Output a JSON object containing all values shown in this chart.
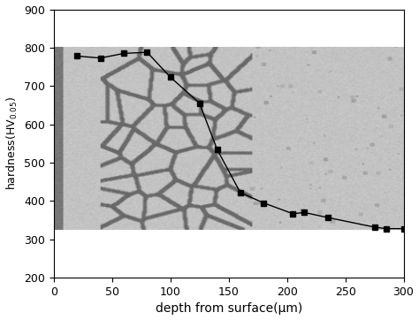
{
  "x_data": [
    20,
    40,
    60,
    80,
    100,
    125,
    140,
    160,
    180,
    205,
    215,
    235,
    275,
    285,
    300
  ],
  "y_data": [
    778,
    773,
    785,
    788,
    723,
    655,
    535,
    422,
    395,
    367,
    370,
    357,
    332,
    328,
    328
  ],
  "xlim": [
    0,
    300
  ],
  "ylim": [
    200,
    900
  ],
  "xticks": [
    0,
    50,
    100,
    150,
    200,
    250,
    300
  ],
  "yticks": [
    200,
    300,
    400,
    500,
    600,
    700,
    800,
    900
  ],
  "xlabel": "depth from surface(μm)",
  "ylabel": "hardness(HV$_{0.05}$)",
  "line_color": "#000000",
  "marker": "s",
  "marker_size": 4,
  "fig_bg": "#ffffff",
  "bg_base_gray": 195,
  "bg_ymin": 325,
  "bg_ymax": 800,
  "cell_region_xmin": 40,
  "cell_region_xmax": 170,
  "cell_darkness": 120,
  "outer_darkness": 185,
  "ylabel_fontsize": 9,
  "xlabel_fontsize": 10,
  "tick_fontsize": 9
}
